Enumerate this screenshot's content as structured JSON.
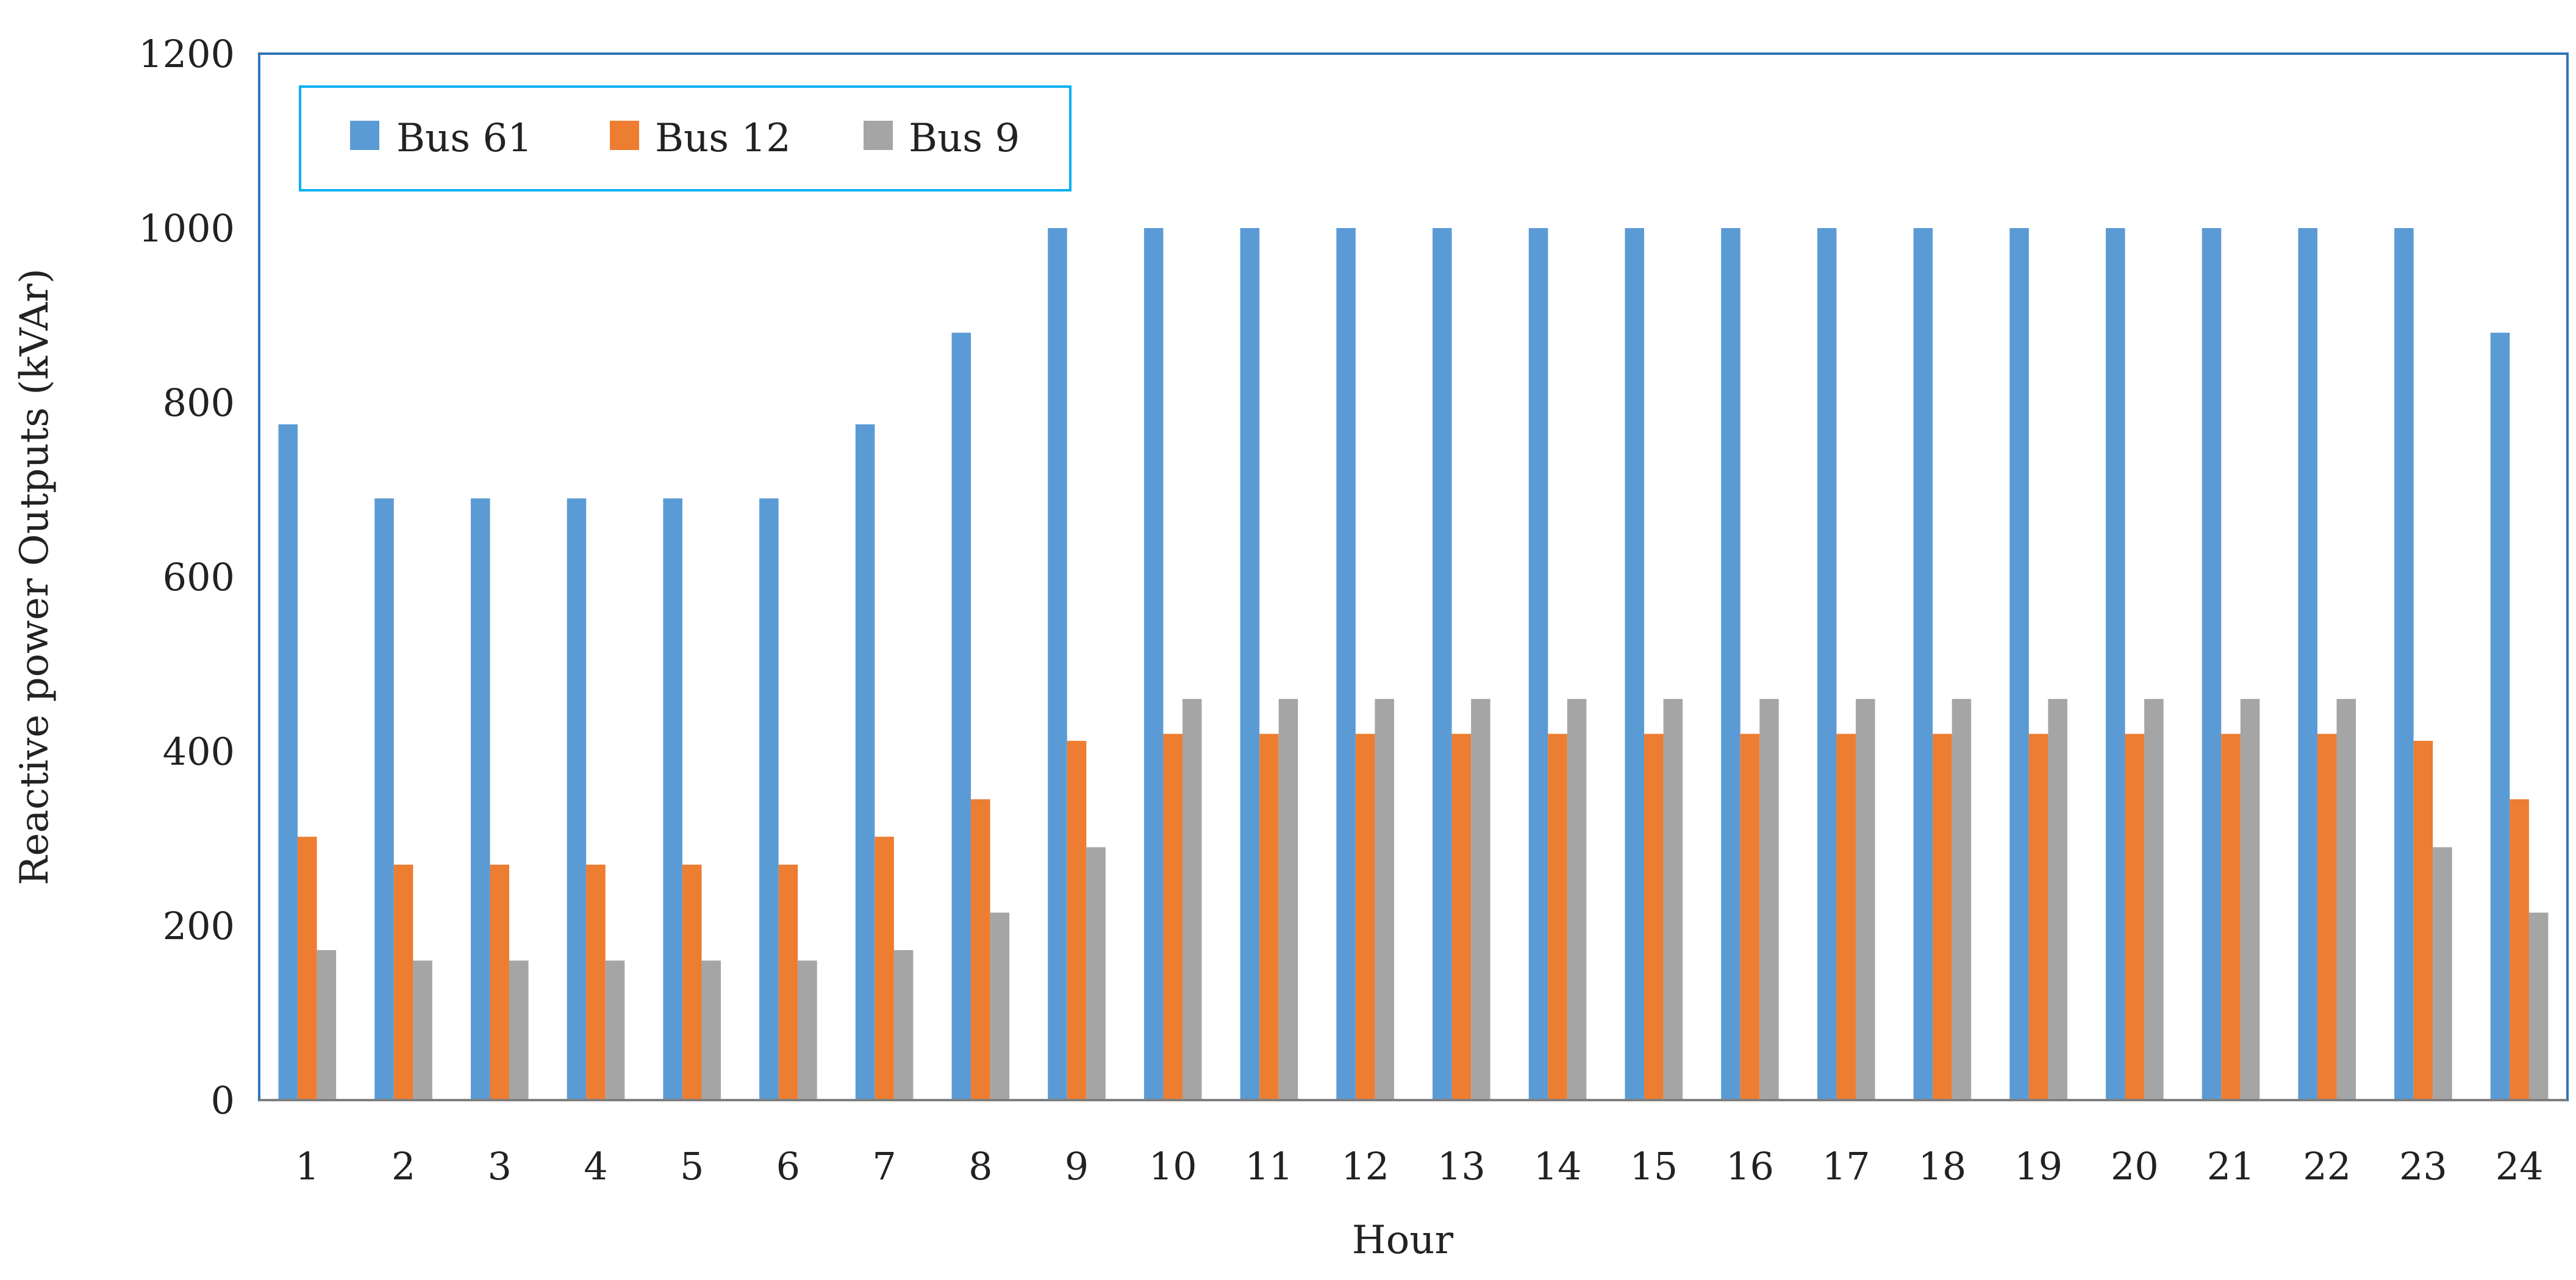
{
  "chart_data": {
    "type": "bar",
    "title": "",
    "xlabel": "Hour",
    "ylabel": "Reactive power Outputs (kVAr)",
    "ylim": [
      0,
      1200
    ],
    "yticks": [
      0,
      200,
      400,
      600,
      800,
      1000,
      1200
    ],
    "grid": false,
    "legend_position": "top-left",
    "categories": [
      "1",
      "2",
      "3",
      "4",
      "5",
      "6",
      "7",
      "8",
      "9",
      "10",
      "11",
      "12",
      "13",
      "14",
      "15",
      "16",
      "17",
      "18",
      "19",
      "20",
      "21",
      "22",
      "23",
      "24"
    ],
    "series": [
      {
        "name": "Bus 61",
        "color": "#5B9BD5",
        "values": [
          775,
          690,
          690,
          690,
          690,
          690,
          775,
          880,
          1000,
          1000,
          1000,
          1000,
          1000,
          1000,
          1000,
          1000,
          1000,
          1000,
          1000,
          1000,
          1000,
          1000,
          1000,
          880
        ]
      },
      {
        "name": "Bus 12",
        "color": "#ED7D31",
        "values": [
          302,
          270,
          270,
          270,
          270,
          270,
          302,
          345,
          412,
          420,
          420,
          420,
          420,
          420,
          420,
          420,
          420,
          420,
          420,
          420,
          420,
          420,
          412,
          345
        ]
      },
      {
        "name": "Bus 9",
        "color": "#A5A5A5",
        "values": [
          172,
          160,
          160,
          160,
          160,
          160,
          172,
          215,
          290,
          460,
          460,
          460,
          460,
          460,
          460,
          460,
          460,
          460,
          460,
          460,
          460,
          460,
          290,
          215
        ]
      }
    ]
  },
  "colors": {
    "frame": "#2E75B6",
    "legend_border": "#00B0F0",
    "axis": "#7F7F7F"
  }
}
